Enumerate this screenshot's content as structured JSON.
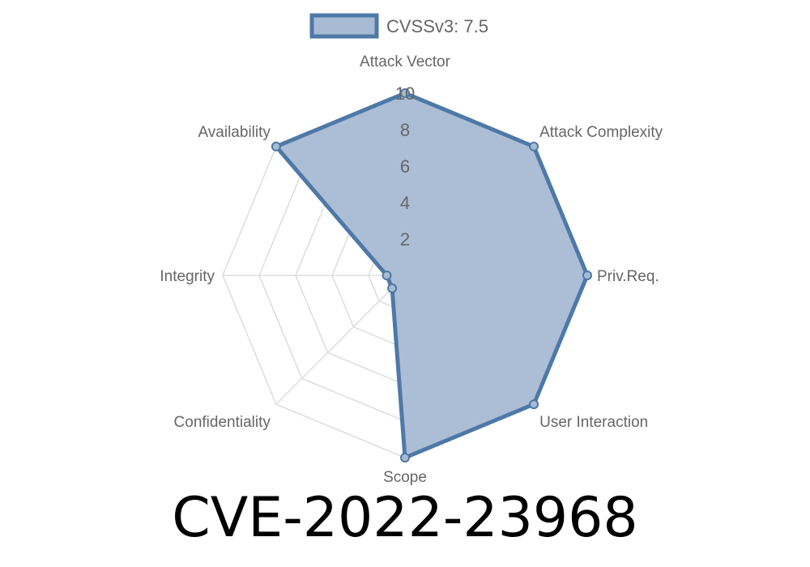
{
  "chart_data": {
    "type": "radar",
    "title": "CVE-2022-23968",
    "axes": [
      "Attack Vector",
      "Attack Complexity",
      "Priv.Req.",
      "User Interaction",
      "Scope",
      "Confidentiality",
      "Integrity",
      "Availability"
    ],
    "series": [
      {
        "name": "CVSSv3: 7.5",
        "values": [
          10,
          10,
          10,
          10,
          10,
          1,
          1,
          10
        ]
      }
    ],
    "rlim": [
      0,
      10
    ],
    "ticks": [
      "2",
      "4",
      "6",
      "8",
      "10"
    ],
    "tick_values": [
      2,
      4,
      6,
      8,
      10
    ],
    "grid": true,
    "legend": "top",
    "colors": {
      "line": "#4e79a7",
      "fill": "#a7bbd4",
      "grid": "#dddddd"
    }
  }
}
